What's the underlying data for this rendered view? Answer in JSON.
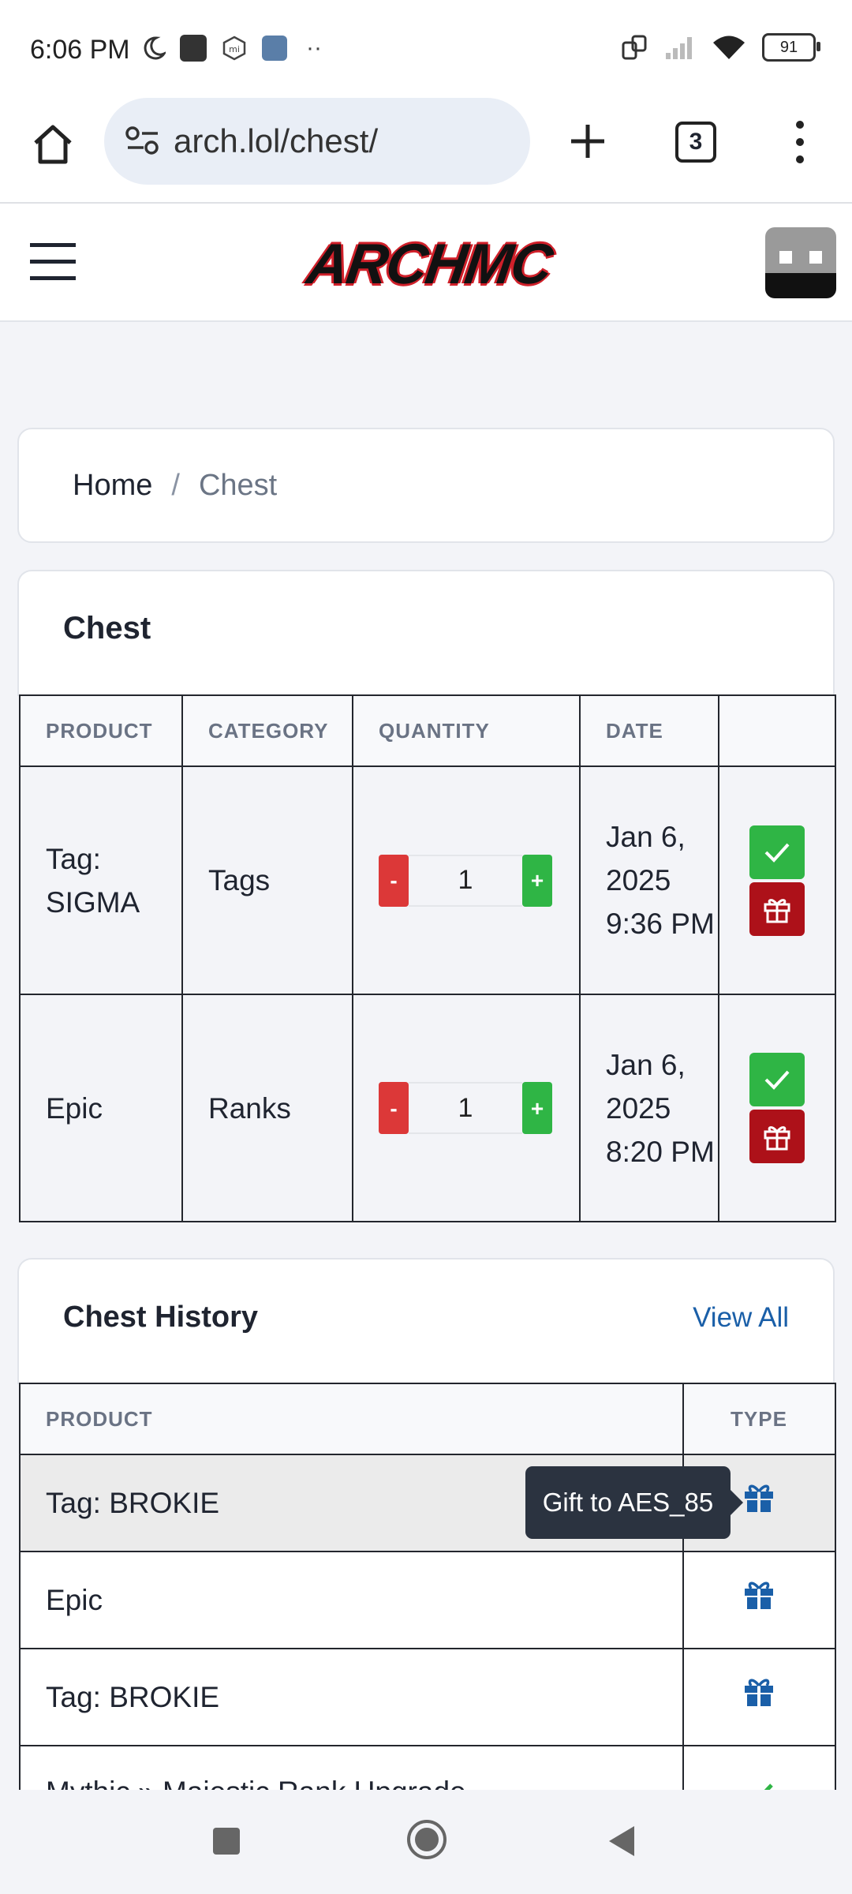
{
  "status_bar": {
    "time": "6:06 PM",
    "battery": "91"
  },
  "browser": {
    "url": "arch.lol/chest/",
    "tab_count": "3"
  },
  "site": {
    "logo": "ARCHMC"
  },
  "breadcrumb": {
    "home": "Home",
    "separator": "/",
    "current": "Chest"
  },
  "chest": {
    "title": "Chest",
    "headers": {
      "product": "PRODUCT",
      "category": "CATEGORY",
      "quantity": "QUANTITY",
      "date": "DATE"
    },
    "rows": [
      {
        "product": "Tag: SIGMA",
        "category": "Tags",
        "quantity": "1",
        "minus": "-",
        "plus": "+",
        "date": "Jan 6, 2025 9:36 PM"
      },
      {
        "product": "Epic",
        "category": "Ranks",
        "quantity": "1",
        "minus": "-",
        "plus": "+",
        "date": "Jan 6, 2025 8:20 PM"
      }
    ]
  },
  "history": {
    "title": "Chest History",
    "view_all": "View All",
    "headers": {
      "product": "PRODUCT",
      "type": "TYPE"
    },
    "rows": [
      {
        "product": "Tag: BROKIE",
        "type_icon": "gift-icon"
      },
      {
        "product": "Epic",
        "type_icon": "gift-icon"
      },
      {
        "product": "Tag: BROKIE",
        "type_icon": "gift-icon"
      },
      {
        "product": "Mythic » Majestic Rank Upgrade",
        "type_icon": "check-icon"
      }
    ],
    "tooltip": "Gift to AES_85"
  },
  "colors": {
    "accent_link": "#1a5fa8",
    "claim_green": "#2fb545",
    "gift_red": "#ad1119",
    "minus_red": "#dc3838"
  }
}
